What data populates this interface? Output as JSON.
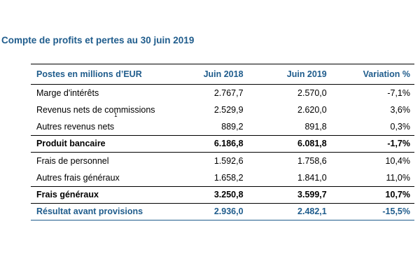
{
  "title": "Compte de profits et pertes au 30 juin 2019",
  "table": {
    "headers": [
      "Postes en millions d’EUR",
      "Juin 2018",
      "Juin 2019",
      "Variation %"
    ],
    "rows": [
      {
        "label": "Marge d'intérêts",
        "sup": "",
        "jun2018": "2.767,7",
        "jun2019": "2.570,0",
        "variation": "-7,1%"
      },
      {
        "label": "Revenus nets de commissions",
        "sup": "",
        "jun2018": "2.529,9",
        "jun2019": "2.620,0",
        "variation": "3,6%"
      },
      {
        "label": "Autres revenus nets",
        "sup": "1",
        "jun2018": "889,2",
        "jun2019": "891,8",
        "variation": "0,3%"
      },
      {
        "label": "Produit bancaire",
        "sup": "",
        "jun2018": "6.186,8",
        "jun2019": "6.081,8",
        "variation": "-1,7%"
      },
      {
        "label": "Frais de personnel",
        "sup": "",
        "jun2018": "1.592,6",
        "jun2019": "1.758,6",
        "variation": "10,4%"
      },
      {
        "label": "Autres frais généraux",
        "sup": "",
        "jun2018": "1.658,2",
        "jun2019": "1.841,0",
        "variation": "11,0%"
      },
      {
        "label": "Frais généraux",
        "sup": "",
        "jun2018": "3.250,8",
        "jun2019": "3.599,7",
        "variation": "10,7%"
      },
      {
        "label": "Résultat avant provisions",
        "sup": "",
        "jun2018": "2.936,0",
        "jun2019": "2.482,1",
        "variation": "-15,5%"
      }
    ]
  }
}
